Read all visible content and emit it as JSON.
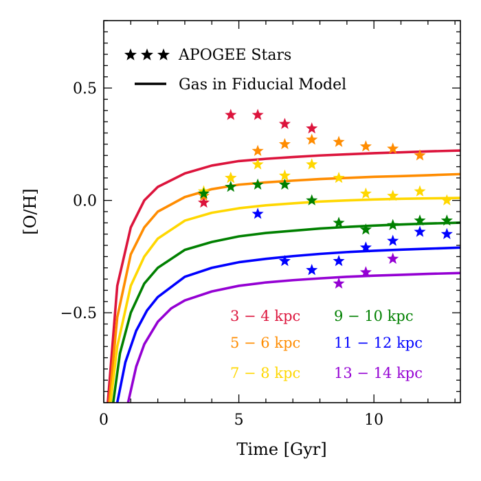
{
  "chart_data": {
    "type": "line",
    "xlabel": "Time [Gyr]",
    "ylabel": "[O/H]",
    "xlim": [
      0,
      13.2
    ],
    "ylim": [
      -0.9,
      0.8
    ],
    "xticks": [
      0,
      5,
      10
    ],
    "yticks": [
      -0.5,
      0.0,
      0.5
    ],
    "xtick_labels": [
      "0",
      "5",
      "10"
    ],
    "ytick_labels": [
      "−0.5",
      "0.0",
      "0.5"
    ],
    "grid": false,
    "legend": {
      "placement": "top-left",
      "entries": [
        {
          "label": "APOGEE Stars",
          "marker": "star"
        },
        {
          "label": "Gas in Fiducial Model",
          "marker": "line"
        }
      ]
    },
    "series": [
      {
        "name": "3 − 4 kpc",
        "color": "#dc143c",
        "model_x": [
          0.15,
          0.5,
          1.0,
          1.5,
          2.0,
          3.0,
          4.0,
          5.0,
          6.0,
          7.0,
          8.0,
          9.0,
          10.0,
          11.0,
          12.0,
          13.2
        ],
        "model_y": [
          -0.9,
          -0.38,
          -0.12,
          0.0,
          0.06,
          0.12,
          0.155,
          0.175,
          0.185,
          0.193,
          0.2,
          0.205,
          0.21,
          0.214,
          0.218,
          0.222
        ],
        "stars": [
          [
            3.7,
            -0.01
          ],
          [
            4.7,
            0.38
          ],
          [
            5.7,
            0.38
          ],
          [
            6.7,
            0.34
          ],
          [
            7.7,
            0.32
          ]
        ]
      },
      {
        "name": "5 − 6 kpc",
        "color": "#ff8c00",
        "model_x": [
          0.2,
          0.5,
          1.0,
          1.5,
          2.0,
          3.0,
          4.0,
          5.0,
          6.0,
          7.0,
          8.0,
          9.0,
          10.0,
          11.0,
          12.0,
          13.2
        ],
        "model_y": [
          -0.9,
          -0.52,
          -0.24,
          -0.12,
          -0.05,
          0.015,
          0.05,
          0.07,
          0.08,
          0.088,
          0.095,
          0.1,
          0.105,
          0.108,
          0.112,
          0.117
        ],
        "stars": [
          [
            3.7,
            0.02
          ],
          [
            4.7,
            0.1
          ],
          [
            5.7,
            0.22
          ],
          [
            6.7,
            0.25
          ],
          [
            7.7,
            0.27
          ],
          [
            8.7,
            0.26
          ],
          [
            9.7,
            0.24
          ],
          [
            10.7,
            0.23
          ],
          [
            11.7,
            0.2
          ]
        ]
      },
      {
        "name": "7 − 8 kpc",
        "color": "#ffd700",
        "model_x": [
          0.25,
          0.5,
          1.0,
          1.5,
          2.0,
          3.0,
          4.0,
          5.0,
          6.0,
          7.0,
          8.0,
          9.0,
          10.0,
          11.0,
          12.0,
          13.2
        ],
        "model_y": [
          -0.9,
          -0.65,
          -0.38,
          -0.25,
          -0.17,
          -0.09,
          -0.055,
          -0.035,
          -0.022,
          -0.013,
          -0.005,
          0.0,
          0.004,
          0.007,
          0.009,
          0.011
        ],
        "stars": [
          [
            3.7,
            0.04
          ],
          [
            4.7,
            0.1
          ],
          [
            5.7,
            0.16
          ],
          [
            6.7,
            0.11
          ],
          [
            7.7,
            0.16
          ],
          [
            8.7,
            0.1
          ],
          [
            9.7,
            0.03
          ],
          [
            10.7,
            0.02
          ],
          [
            11.7,
            0.04
          ],
          [
            12.7,
            0.0
          ]
        ]
      },
      {
        "name": "9 − 10 kpc",
        "color": "#008000",
        "model_x": [
          0.35,
          0.6,
          1.0,
          1.5,
          2.0,
          3.0,
          4.0,
          5.0,
          6.0,
          7.0,
          8.0,
          9.0,
          10.0,
          11.0,
          12.0,
          13.2
        ],
        "model_y": [
          -0.9,
          -0.68,
          -0.5,
          -0.37,
          -0.3,
          -0.22,
          -0.185,
          -0.16,
          -0.145,
          -0.135,
          -0.125,
          -0.118,
          -0.112,
          -0.107,
          -0.103,
          -0.099
        ],
        "stars": [
          [
            3.7,
            0.03
          ],
          [
            4.7,
            0.06
          ],
          [
            5.7,
            0.07
          ],
          [
            6.7,
            0.07
          ],
          [
            7.7,
            0.0
          ],
          [
            8.7,
            -0.1
          ],
          [
            9.7,
            -0.13
          ],
          [
            10.7,
            -0.11
          ],
          [
            11.7,
            -0.09
          ],
          [
            12.7,
            -0.09
          ]
        ]
      },
      {
        "name": "11 − 12 kpc",
        "color": "#0000ff",
        "model_x": [
          0.5,
          0.8,
          1.2,
          1.6,
          2.0,
          3.0,
          4.0,
          5.0,
          6.0,
          7.0,
          8.0,
          9.0,
          10.0,
          11.0,
          12.0,
          13.2
        ],
        "model_y": [
          -0.9,
          -0.72,
          -0.58,
          -0.49,
          -0.43,
          -0.34,
          -0.3,
          -0.275,
          -0.26,
          -0.248,
          -0.238,
          -0.23,
          -0.224,
          -0.219,
          -0.215,
          -0.21
        ],
        "stars": [
          [
            5.7,
            -0.06
          ],
          [
            6.7,
            -0.27
          ],
          [
            7.7,
            -0.31
          ],
          [
            8.7,
            -0.27
          ],
          [
            9.7,
            -0.21
          ],
          [
            10.7,
            -0.18
          ],
          [
            11.7,
            -0.14
          ],
          [
            12.7,
            -0.15
          ]
        ]
      },
      {
        "name": "13 − 14 kpc",
        "color": "#9400d3",
        "model_x": [
          0.9,
          1.2,
          1.5,
          2.0,
          2.5,
          3.0,
          4.0,
          5.0,
          6.0,
          7.0,
          8.0,
          9.0,
          10.0,
          11.0,
          12.0,
          13.2
        ],
        "model_y": [
          -0.9,
          -0.74,
          -0.64,
          -0.54,
          -0.48,
          -0.445,
          -0.405,
          -0.38,
          -0.365,
          -0.355,
          -0.347,
          -0.34,
          -0.335,
          -0.331,
          -0.327,
          -0.323
        ],
        "stars": [
          [
            8.7,
            -0.37
          ],
          [
            9.7,
            -0.32
          ],
          [
            10.7,
            -0.26
          ]
        ]
      }
    ]
  }
}
